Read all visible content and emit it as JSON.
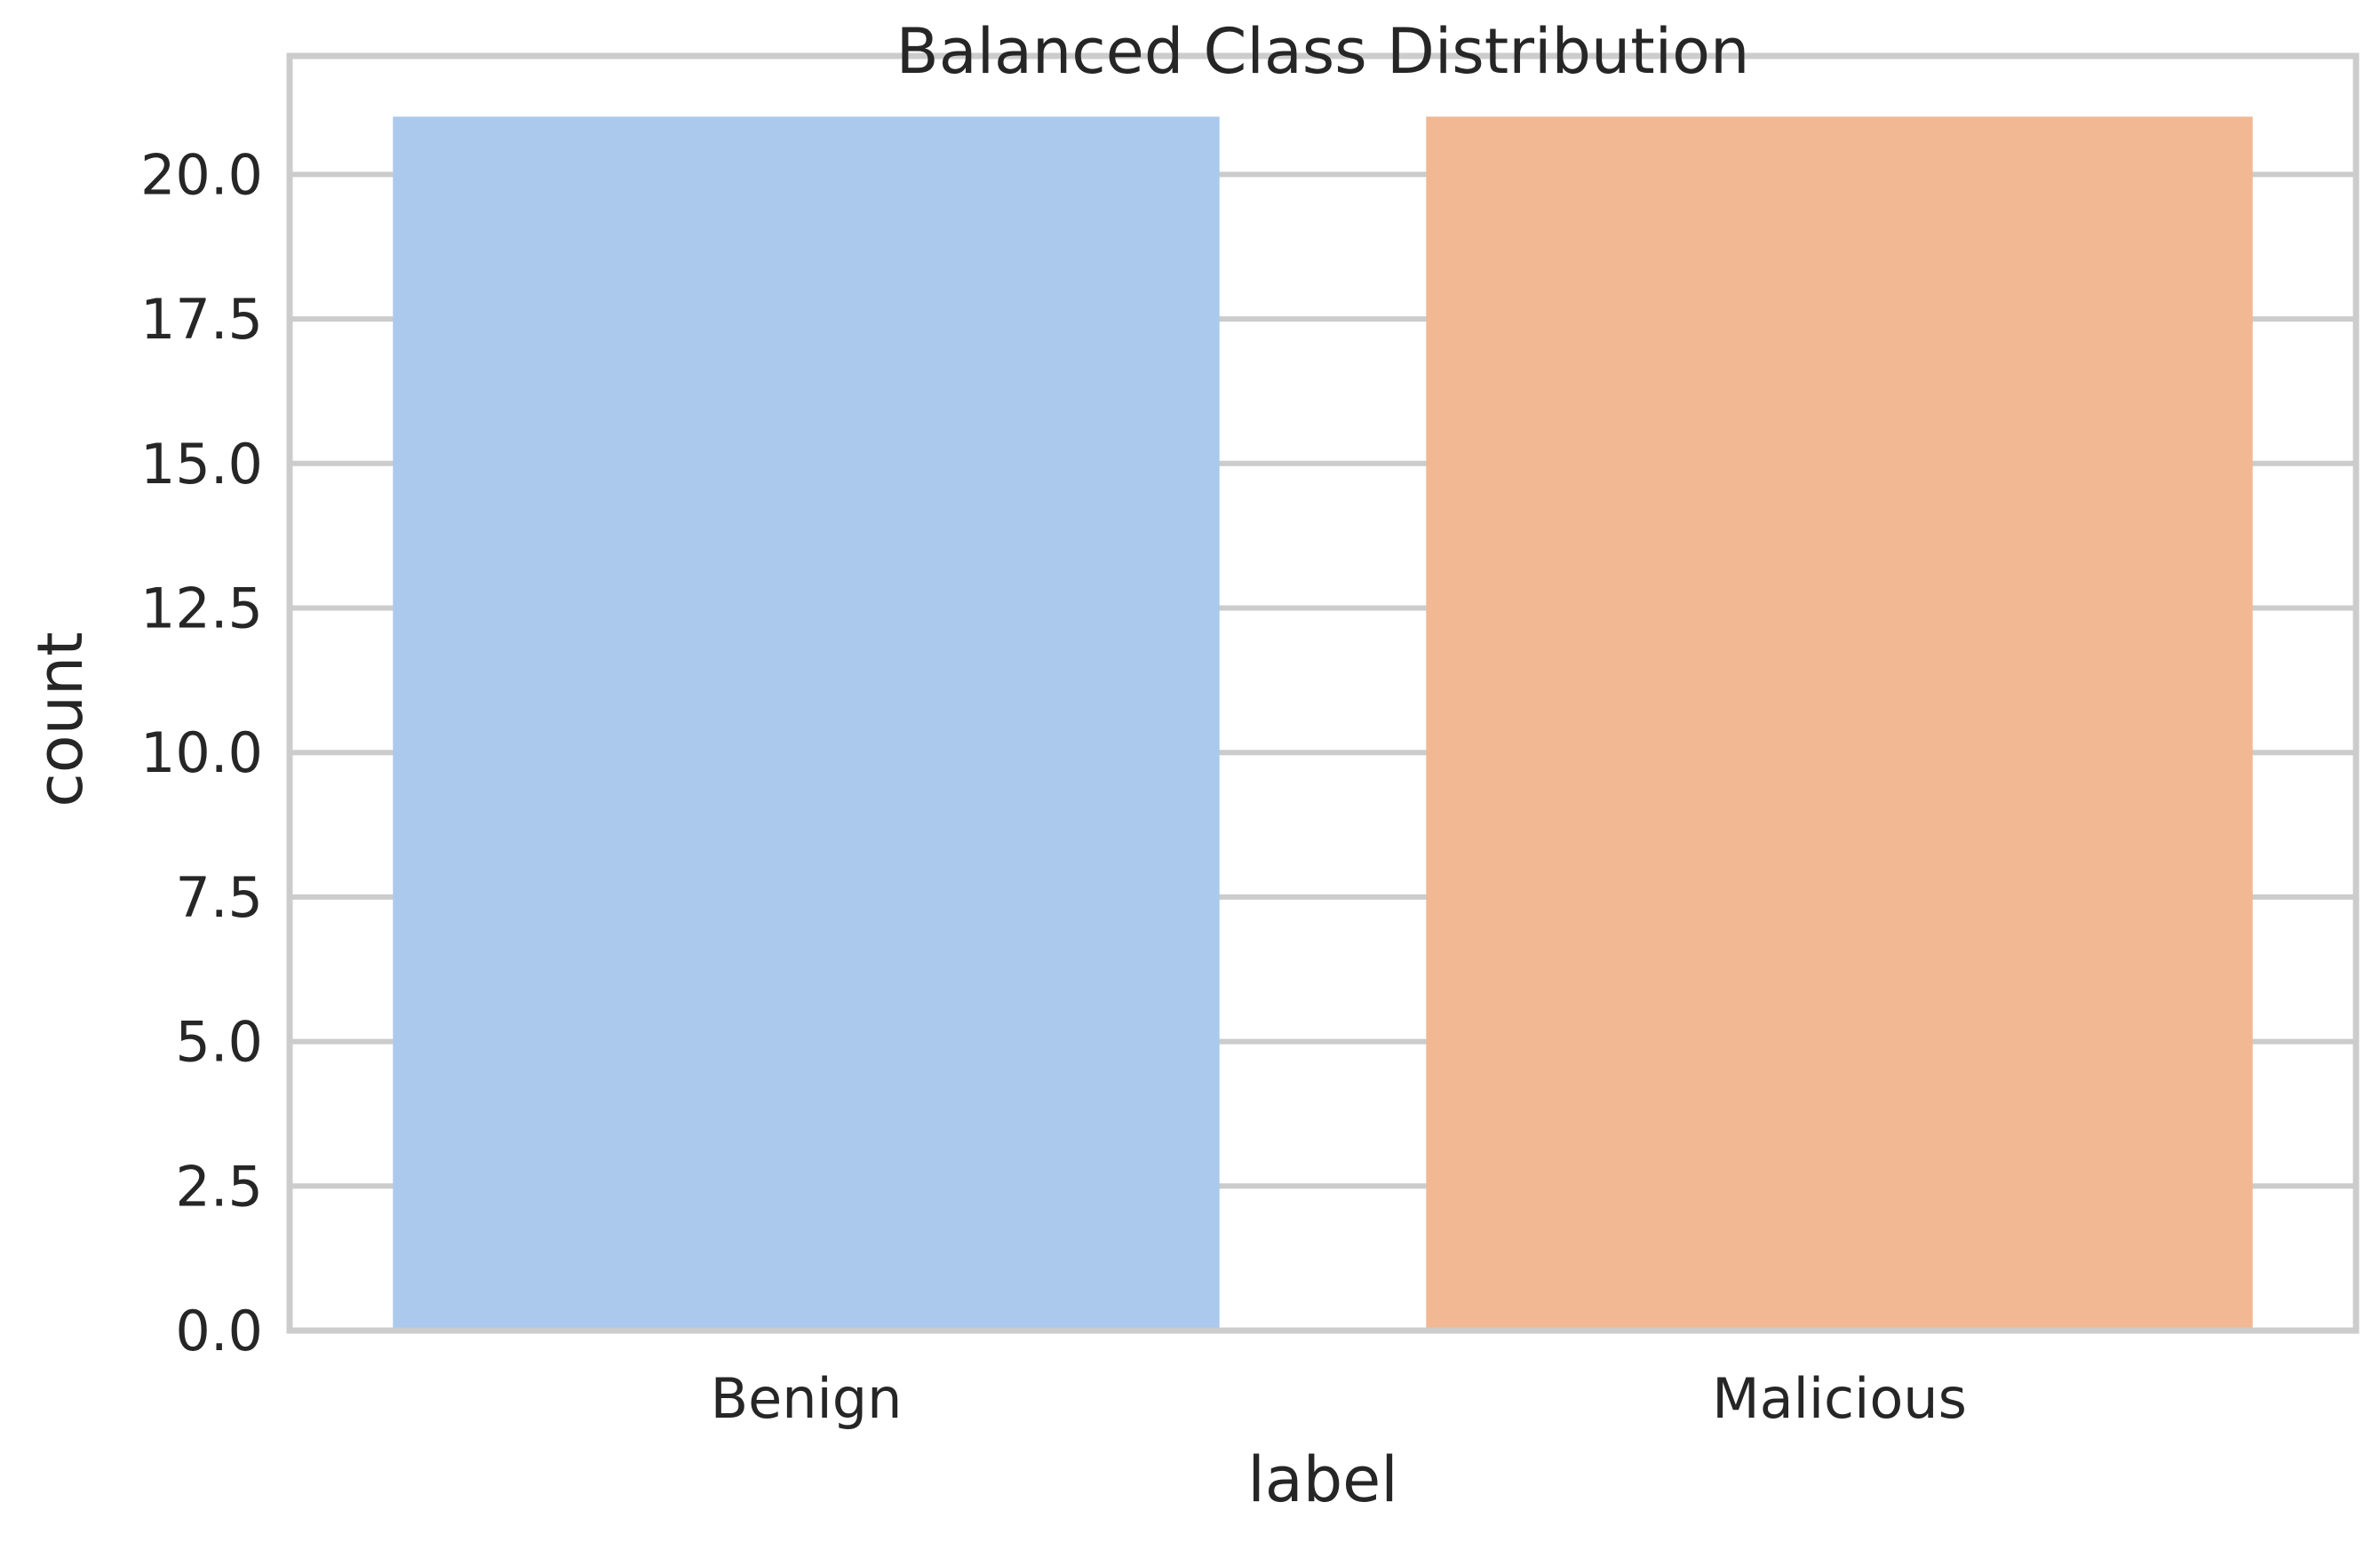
{
  "chart_data": {
    "type": "bar",
    "title": "Balanced Class Distribution",
    "xlabel": "label",
    "ylabel": "count",
    "categories": [
      "Benign",
      "Malicious"
    ],
    "values": [
      21,
      21
    ],
    "colors": [
      "#abc9ec",
      "#f1b893"
    ],
    "ylim": [
      0,
      22.05
    ],
    "yticks": [
      0.0,
      2.5,
      5.0,
      7.5,
      10.0,
      12.5,
      15.0,
      17.5,
      20.0
    ],
    "ytick_labels": [
      "0.0",
      "2.5",
      "5.0",
      "7.5",
      "10.0",
      "12.5",
      "15.0",
      "17.5",
      "20.0"
    ],
    "grid": "horizontal",
    "legend": "none"
  }
}
